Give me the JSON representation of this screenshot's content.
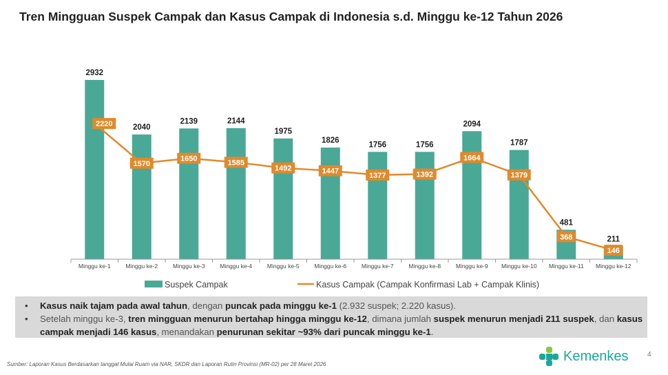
{
  "chart_data": {
    "type": "bar+line",
    "title": "Tren Mingguan Suspek Campak dan Kasus Campak di Indonesia s.d. Minggu ke-12 Tahun 2026",
    "categories": [
      "Minggu ke-1",
      "Minggu ke-2",
      "Minggu ke-3",
      "Minggu ke-4",
      "Minggu ke-5",
      "Minggu ke-6",
      "Minggu ke-7",
      "Minggu ke-8",
      "Minggu ke-9",
      "Minggu ke-10",
      "Minggu ke-11",
      "Minggu ke-12"
    ],
    "series": [
      {
        "name": "Suspek Campak",
        "type": "bar",
        "color": "#4aa896",
        "values": [
          2932,
          2040,
          2139,
          2144,
          1975,
          1826,
          1756,
          1756,
          2094,
          1787,
          481,
          211
        ]
      },
      {
        "name": "Kasus Campak (Campak Konfirmasi Lab + Campak Klinis)",
        "type": "line",
        "color": "#e08a2c",
        "values": [
          2220,
          1570,
          1650,
          1585,
          1492,
          1447,
          1377,
          1392,
          1664,
          1379,
          368,
          146
        ]
      }
    ],
    "ylim": [
      0,
      2932
    ],
    "legend": "bottom",
    "grid": false
  },
  "notes": [
    [
      {
        "b": true,
        "t": "Kasus naik tajam pada awal tahun"
      },
      {
        "b": false,
        "t": ", dengan "
      },
      {
        "b": true,
        "t": "puncak pada minggu ke-1"
      },
      {
        "b": false,
        "t": " (2.932 suspek; 2.220 kasus)."
      }
    ],
    [
      {
        "b": false,
        "t": "Setelah minggu ke-3, "
      },
      {
        "b": true,
        "t": "tren mingguan menurun bertahap hingga minggu ke-12"
      },
      {
        "b": false,
        "t": ", dimana jumlah "
      },
      {
        "b": true,
        "t": "suspek menurun menjadi 211 suspek"
      },
      {
        "b": false,
        "t": ", dan "
      },
      {
        "b": true,
        "t": "kasus campak menjadi 146 kasus"
      },
      {
        "b": false,
        "t": ", menandakan "
      },
      {
        "b": true,
        "t": "penurunan sekitar ~93% dari puncak minggu ke-1"
      },
      {
        "b": false,
        "t": "."
      }
    ]
  ],
  "source": "Sumber: Laporan Kasus Berdasarkan tanggal Mulai Ruam via  NAR, SKDR dan  Laporan Rutin Provinsi (MR-02) per 28 Maret  2026",
  "logo_text": "Kemenkes",
  "page_number": "4"
}
